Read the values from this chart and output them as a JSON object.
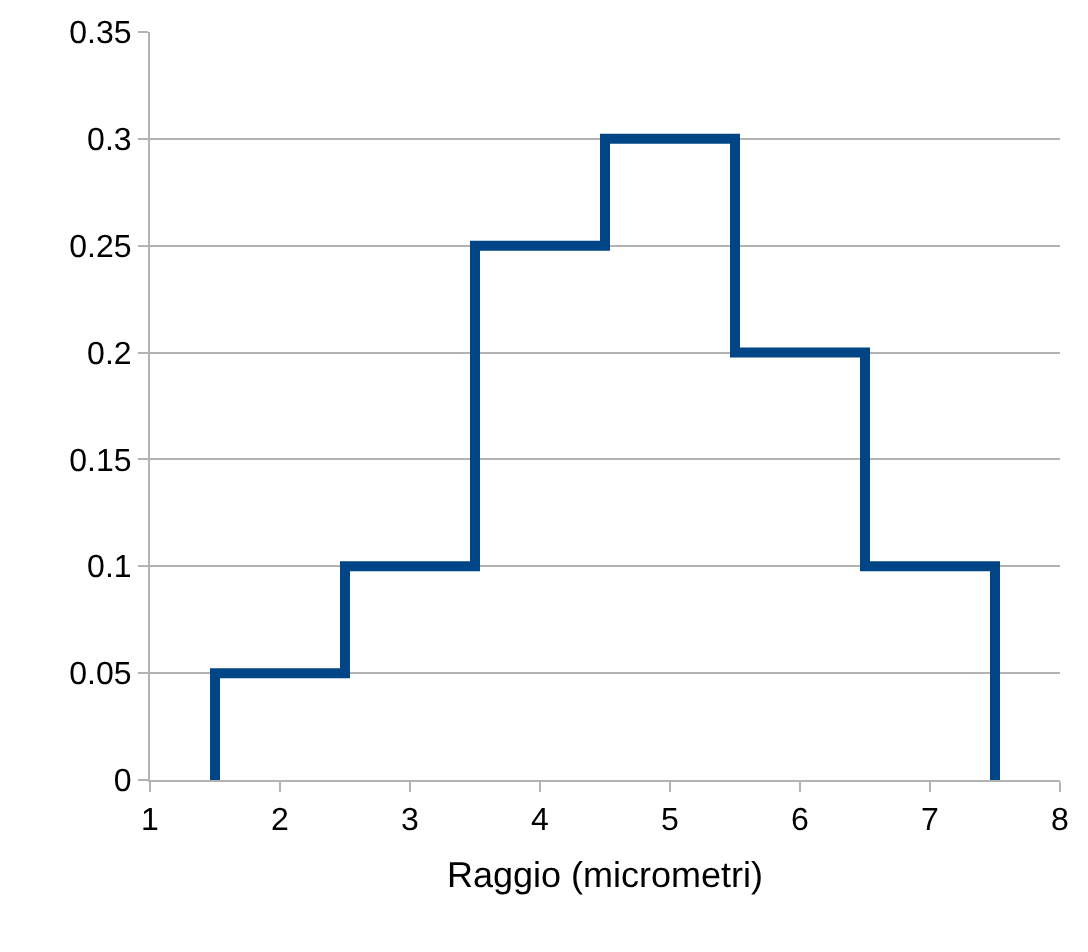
{
  "chart_data": {
    "type": "histogram",
    "xlabel": "Raggio (micrometri)",
    "bins": [
      1.5,
      2.5,
      3.5,
      4.5,
      5.5,
      6.5,
      7.5
    ],
    "values": [
      0.05,
      0.1,
      0.25,
      0.3,
      0.2,
      0.1
    ],
    "color": "#004586",
    "xlim": [
      1,
      8
    ],
    "xticks": [
      1,
      2,
      3,
      4,
      5,
      6,
      7,
      8
    ],
    "ylim": [
      0,
      0.35
    ],
    "yticks": [
      0,
      0.05,
      0.1,
      0.15,
      0.2,
      0.25,
      0.3,
      0.35
    ],
    "grid": "y"
  }
}
